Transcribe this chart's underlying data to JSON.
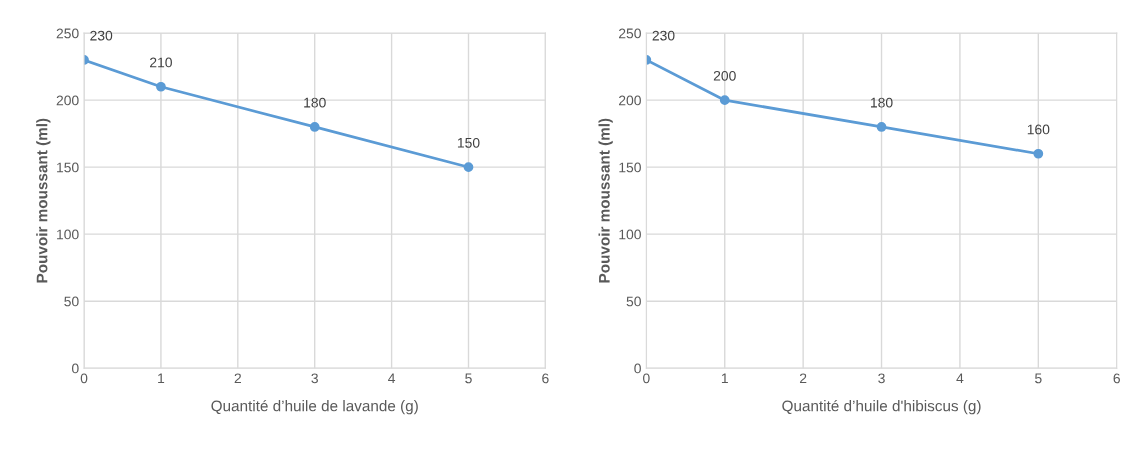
{
  "chart_data": [
    {
      "type": "line",
      "xlabel": "Quantité d’huile de lavande (g)",
      "ylabel": "Pouvoir moussant (ml)",
      "x": [
        0,
        1,
        3,
        5
      ],
      "series": [
        {
          "color": "#5b9bd5",
          "values": [
            230,
            210,
            180,
            150
          ]
        }
      ],
      "xlim": [
        0,
        6
      ],
      "xticks": [
        0,
        1,
        2,
        3,
        4,
        5,
        6
      ],
      "ylim": [
        0,
        250
      ],
      "yticks": [
        0,
        50,
        100,
        150,
        200,
        250
      ],
      "grid": true,
      "marker": "circle",
      "line_style": "solid",
      "data_labels": true
    },
    {
      "type": "line",
      "xlabel": "Quantité d’huile d'hibiscus (g)",
      "ylabel": "Pouvoir moussant (ml)",
      "x": [
        0,
        1,
        3,
        5
      ],
      "series": [
        {
          "color": "#5b9bd5",
          "values": [
            230,
            200,
            180,
            160
          ]
        }
      ],
      "xlim": [
        0,
        6
      ],
      "xticks": [
        0,
        1,
        2,
        3,
        4,
        5,
        6
      ],
      "ylim": [
        0,
        250
      ],
      "yticks": [
        0,
        50,
        100,
        150,
        200,
        250
      ],
      "grid": true,
      "marker": "circle",
      "line_style": "solid",
      "data_labels": true
    }
  ]
}
